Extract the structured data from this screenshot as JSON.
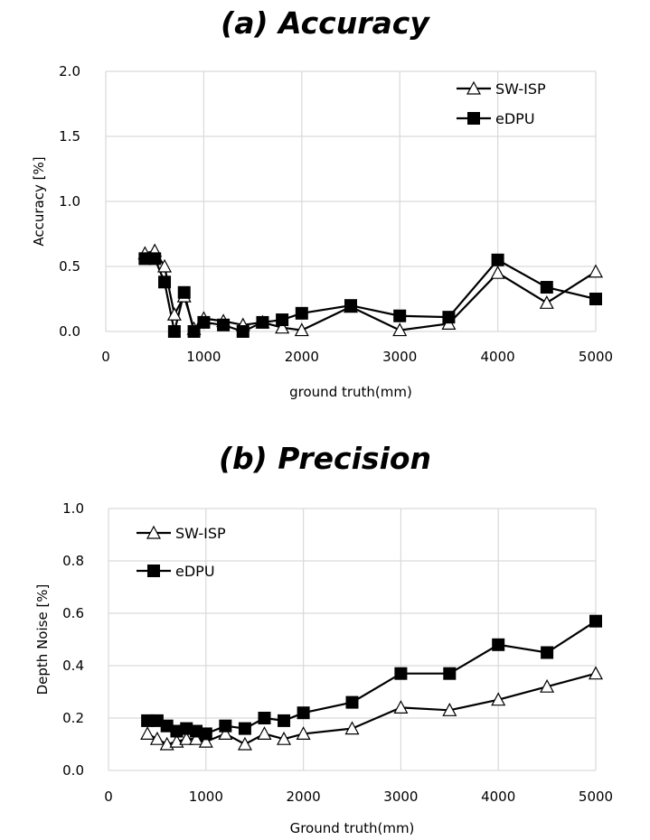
{
  "chart_data": [
    {
      "type": "line",
      "title": "(a) Accuracy",
      "xlabel": "ground truth(mm)",
      "ylabel": "Accuracy [%]",
      "xlim": [
        0,
        5000
      ],
      "ylim": [
        0,
        2.0
      ],
      "xticks": [
        "0",
        "1000",
        "2000",
        "3000",
        "4000",
        "5000"
      ],
      "yticks": [
        "0.0",
        "0.5",
        "1.0",
        "1.5",
        "2.0"
      ],
      "grid": true,
      "legend_position": "top-right",
      "series": [
        {
          "name": "SW-ISP",
          "marker": "triangle-open",
          "x": [
            400,
            500,
            600,
            700,
            800,
            900,
            1000,
            1200,
            1400,
            1600,
            1800,
            2000,
            2500,
            3000,
            3500,
            4000,
            4500,
            5000
          ],
          "y": [
            0.6,
            0.62,
            0.5,
            0.13,
            0.27,
            0.02,
            0.1,
            0.08,
            0.05,
            0.07,
            0.03,
            0.01,
            0.19,
            0.01,
            0.06,
            0.45,
            0.22,
            0.46
          ]
        },
        {
          "name": "eDPU",
          "marker": "square-filled",
          "x": [
            400,
            500,
            600,
            700,
            800,
            900,
            1000,
            1200,
            1400,
            1600,
            1800,
            2000,
            2500,
            3000,
            3500,
            4000,
            4500,
            5000
          ],
          "y": [
            0.56,
            0.56,
            0.38,
            0.0,
            0.3,
            0.0,
            0.07,
            0.05,
            0.0,
            0.07,
            0.09,
            0.14,
            0.2,
            0.12,
            0.11,
            0.55,
            0.34,
            0.25
          ]
        }
      ]
    },
    {
      "type": "line",
      "title": "(b) Precision",
      "xlabel": "Ground truth(mm)",
      "ylabel": "Depth Noise [%]",
      "xlim": [
        0,
        5000
      ],
      "ylim": [
        0,
        1.0
      ],
      "xticks": [
        "0",
        "1000",
        "2000",
        "3000",
        "4000",
        "5000"
      ],
      "yticks": [
        "0.0",
        "0.2",
        "0.4",
        "0.6",
        "0.8",
        "1.0"
      ],
      "grid": true,
      "legend_position": "top-left",
      "series": [
        {
          "name": "SW-ISP",
          "marker": "triangle-open",
          "x": [
            400,
            500,
            600,
            700,
            800,
            900,
            1000,
            1200,
            1400,
            1600,
            1800,
            2000,
            2500,
            3000,
            3500,
            4000,
            4500,
            5000
          ],
          "y": [
            0.14,
            0.12,
            0.1,
            0.11,
            0.12,
            0.12,
            0.11,
            0.14,
            0.1,
            0.14,
            0.12,
            0.14,
            0.16,
            0.24,
            0.23,
            0.27,
            0.32,
            0.37
          ]
        },
        {
          "name": "eDPU",
          "marker": "square-filled",
          "x": [
            400,
            500,
            600,
            700,
            800,
            900,
            1000,
            1200,
            1400,
            1600,
            1800,
            2000,
            2500,
            3000,
            3500,
            4000,
            4500,
            5000
          ],
          "y": [
            0.19,
            0.19,
            0.17,
            0.15,
            0.16,
            0.15,
            0.14,
            0.17,
            0.16,
            0.2,
            0.19,
            0.22,
            0.26,
            0.37,
            0.37,
            0.48,
            0.45,
            0.57
          ]
        }
      ]
    }
  ]
}
